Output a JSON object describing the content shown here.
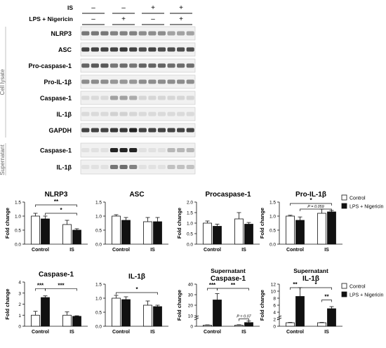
{
  "blot": {
    "conditions": [
      {
        "label": "IS",
        "signs": [
          "–",
          "–",
          "+",
          "+"
        ]
      },
      {
        "label": "LPS + Nigericin",
        "signs": [
          "–",
          "+",
          "–",
          "+"
        ]
      }
    ],
    "group_labels": [
      "Cell lysate",
      "Supernatant"
    ],
    "lysate_rows": [
      "NLRP3",
      "ASC",
      "Pro-caspase-1",
      "Pro-IL-1β",
      "Caspase-1",
      "IL-1β",
      "GAPDH"
    ],
    "lysate_intensity": [
      [
        0.55,
        0.55,
        0.55,
        0.5,
        0.5,
        0.5,
        0.45,
        0.45,
        0.45,
        0.35,
        0.35,
        0.35
      ],
      [
        0.8,
        0.8,
        0.8,
        0.8,
        0.85,
        0.8,
        0.75,
        0.8,
        0.75,
        0.75,
        0.75,
        0.75
      ],
      [
        0.65,
        0.7,
        0.7,
        0.55,
        0.6,
        0.55,
        0.65,
        0.65,
        0.65,
        0.6,
        0.6,
        0.6
      ],
      [
        0.45,
        0.45,
        0.45,
        0.4,
        0.4,
        0.4,
        0.45,
        0.45,
        0.45,
        0.45,
        0.45,
        0.45
      ],
      [
        0.08,
        0.08,
        0.08,
        0.35,
        0.35,
        0.3,
        0.1,
        0.1,
        0.1,
        0.1,
        0.1,
        0.1
      ],
      [
        0.08,
        0.08,
        0.08,
        0.12,
        0.12,
        0.1,
        0.08,
        0.08,
        0.08,
        0.08,
        0.08,
        0.08
      ],
      [
        0.8,
        0.8,
        0.8,
        0.85,
        0.85,
        0.95,
        0.8,
        0.8,
        0.8,
        0.8,
        0.8,
        0.8
      ]
    ],
    "supernatant_rows": [
      "Caspase-1",
      "IL-1β"
    ],
    "supernatant_intensity": [
      [
        0.05,
        0.05,
        0.05,
        0.95,
        0.95,
        0.95,
        0.05,
        0.05,
        0.05,
        0.25,
        0.25,
        0.25
      ],
      [
        0.05,
        0.05,
        0.05,
        0.55,
        0.6,
        0.5,
        0.05,
        0.05,
        0.05,
        0.2,
        0.2,
        0.2
      ]
    ]
  },
  "legend": {
    "control": "Control",
    "treated": "LPS + Nigericin"
  },
  "chart_data": [
    {
      "type": "bar",
      "title": "NLRP3",
      "ylabel": "Fold change",
      "categories": [
        "Control",
        "IS"
      ],
      "ylim": [
        0,
        1.5
      ],
      "yticks": [
        "0.0",
        "0.5",
        "1.0",
        "1.5"
      ],
      "series": [
        {
          "name": "Control",
          "values": [
            1.0,
            0.7
          ],
          "errors": [
            0.1,
            0.15
          ]
        },
        {
          "name": "LPS + Nigericin",
          "values": [
            0.9,
            0.5
          ],
          "errors": [
            0.1,
            0.05
          ]
        }
      ],
      "annotations": [
        {
          "text": "**",
          "from": 0,
          "to": 3,
          "y": 1.4
        },
        {
          "text": "*",
          "from": 1,
          "to": 3,
          "y": 1.1
        }
      ]
    },
    {
      "type": "bar",
      "title": "ASC",
      "ylabel": "",
      "categories": [
        "Control",
        "IS"
      ],
      "ylim": [
        0,
        1.5
      ],
      "yticks": [
        "0.0",
        "0.5",
        "1.0",
        "1.5"
      ],
      "series": [
        {
          "name": "Control",
          "values": [
            1.0,
            0.8
          ],
          "errors": [
            0.05,
            0.15
          ]
        },
        {
          "name": "LPS + Nigericin",
          "values": [
            0.85,
            0.8
          ],
          "errors": [
            0.1,
            0.15
          ]
        }
      ],
      "annotations": []
    },
    {
      "type": "bar",
      "title": "Procaspase-1",
      "ylabel": "Fold change",
      "categories": [
        "Control",
        "IS"
      ],
      "ylim": [
        0,
        2.0
      ],
      "yticks": [
        "0.0",
        "0.5",
        "1.0",
        "1.5",
        "2.0"
      ],
      "series": [
        {
          "name": "Control",
          "values": [
            1.0,
            1.2
          ],
          "errors": [
            0.1,
            0.3
          ]
        },
        {
          "name": "LPS + Nigericin",
          "values": [
            0.85,
            0.95
          ],
          "errors": [
            0.1,
            0.08
          ]
        }
      ],
      "annotations": []
    },
    {
      "type": "bar",
      "title": "Pro-IL-1β",
      "ylabel": "Fold change",
      "categories": [
        "Control",
        "IS"
      ],
      "ylim": [
        0,
        1.5
      ],
      "yticks": [
        "0.0",
        "0.5",
        "1.0",
        "1.5"
      ],
      "series": [
        {
          "name": "Control",
          "values": [
            1.0,
            1.1
          ],
          "errors": [
            0.03,
            0.15
          ]
        },
        {
          "name": "LPS + Nigericin",
          "values": [
            0.85,
            1.15
          ],
          "errors": [
            0.12,
            0.05
          ]
        }
      ],
      "annotations": [
        {
          "text": "*",
          "from": 0,
          "to": 3,
          "y": 1.45
        },
        {
          "text": "P = 0.059",
          "from": 1,
          "to": 3,
          "y": 1.25
        }
      ]
    },
    {
      "type": "bar",
      "title": "Caspase-1",
      "ylabel": "Fold change",
      "categories": [
        "Control",
        "IS"
      ],
      "ylim": [
        0,
        4
      ],
      "yticks": [
        "0",
        "1",
        "2",
        "3",
        "4"
      ],
      "series": [
        {
          "name": "Control",
          "values": [
            1.0,
            1.0
          ],
          "errors": [
            0.35,
            0.3
          ]
        },
        {
          "name": "LPS + Nigericin",
          "values": [
            2.6,
            0.9
          ],
          "errors": [
            0.15,
            0.05
          ]
        }
      ],
      "annotations": [
        {
          "text": "***",
          "from": 0,
          "to": 1,
          "y": 3.4
        },
        {
          "text": "***",
          "from": 1,
          "to": 3,
          "y": 3.4
        }
      ]
    },
    {
      "type": "bar",
      "title": "IL-1β",
      "ylabel": "",
      "categories": [
        "Control",
        "IS"
      ],
      "ylim": [
        0,
        1.5
      ],
      "yticks": [
        "0.0",
        "0.5",
        "1.0",
        "1.5"
      ],
      "series": [
        {
          "name": "Control",
          "values": [
            1.0,
            0.75
          ],
          "errors": [
            0.1,
            0.15
          ]
        },
        {
          "name": "LPS + Nigericin",
          "values": [
            0.95,
            0.7
          ],
          "errors": [
            0.1,
            0.05
          ]
        }
      ],
      "annotations": [
        {
          "text": "*",
          "from": 0,
          "to": 3,
          "y": 1.2
        }
      ]
    },
    {
      "type": "bar",
      "title": "Supernatant Caspase-1",
      "ylabel": "Fold change",
      "categories": [
        "Control",
        "IS"
      ],
      "ylim": [
        0,
        40
      ],
      "yticks": [
        "0",
        "10",
        "20",
        "30",
        "40"
      ],
      "breakmark": true,
      "series": [
        {
          "name": "Control",
          "values": [
            1.0,
            1.0
          ],
          "errors": [
            0.3,
            0.4
          ]
        },
        {
          "name": "LPS + Nigericin",
          "values": [
            25,
            3.5
          ],
          "errors": [
            6,
            1.5
          ]
        }
      ],
      "annotations": [
        {
          "text": "***",
          "from": 0,
          "to": 1,
          "y": 36
        },
        {
          "text": "**",
          "from": 1,
          "to": 3,
          "y": 36
        },
        {
          "text": "P = 0.07",
          "from": 2,
          "to": 3,
          "y": 7
        }
      ]
    },
    {
      "type": "bar",
      "title": "Supernatant IL-1β",
      "ylabel": "Fold change",
      "categories": [
        "Control",
        "IS"
      ],
      "ylim": [
        0,
        12
      ],
      "yticks": [
        "0",
        "2",
        "4",
        "6",
        "8",
        "10",
        "12"
      ],
      "breakmark": true,
      "series": [
        {
          "name": "Control",
          "values": [
            1.0,
            1.0
          ],
          "errors": [
            0.1,
            0.1
          ]
        },
        {
          "name": "LPS + Nigericin",
          "values": [
            8.5,
            5.0
          ],
          "errors": [
            2.5,
            0.6
          ]
        }
      ],
      "annotations": [
        {
          "text": "**",
          "from": 0,
          "to": 1,
          "y": 11
        },
        {
          "text": "*",
          "from": 1,
          "to": 3,
          "y": 11
        },
        {
          "text": "**",
          "from": 2,
          "to": 3,
          "y": 7.5
        }
      ]
    }
  ]
}
